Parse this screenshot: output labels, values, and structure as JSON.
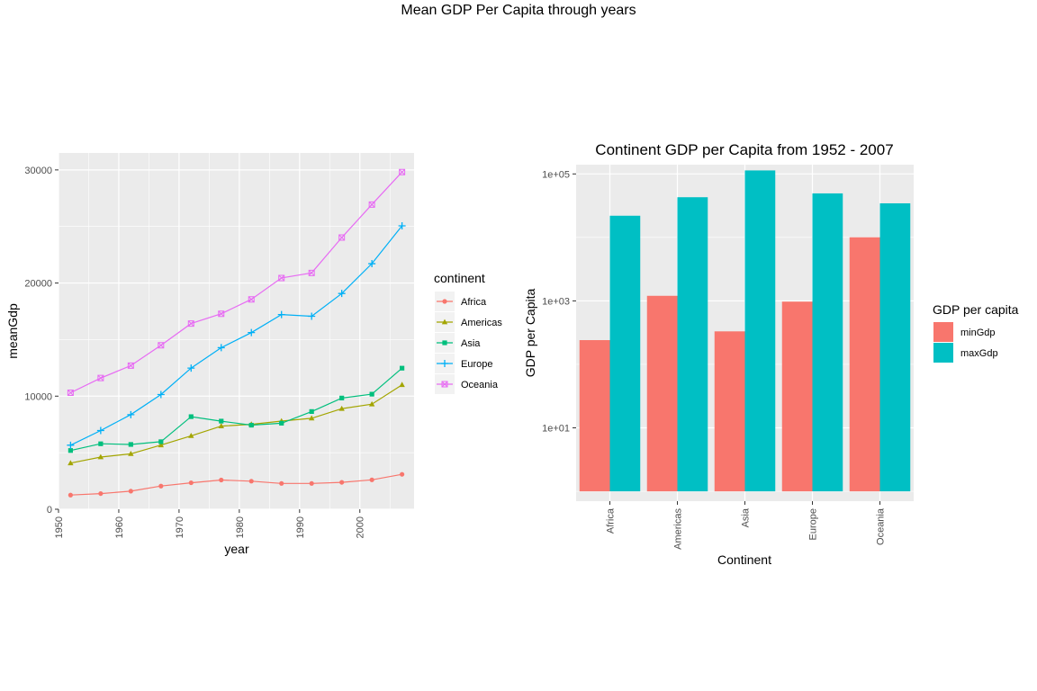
{
  "page": {
    "title": "Mean GDP Per Capita through years"
  },
  "colors": {
    "Africa": "#F8766D",
    "Americas": "#A3A500",
    "Asia": "#00BF7D",
    "Europe": "#00B0F6",
    "Oceania": "#E76BF3",
    "minGdp": "#F8766D",
    "maxGdp": "#00BFC4",
    "panel": "#EBEBEB",
    "grid": "#FFFFFF"
  },
  "chart_data": [
    {
      "type": "line",
      "title": "",
      "xlabel": "year",
      "ylabel": "meanGdp",
      "xlim": [
        1950,
        2009
      ],
      "ylim": [
        0,
        31500
      ],
      "x_ticks": [
        1950,
        1960,
        1970,
        1980,
        1990,
        2000
      ],
      "x_tick_labels": [
        "1950",
        "1960",
        "1970",
        "1980",
        "1990",
        "2000"
      ],
      "y_ticks": [
        0,
        10000,
        20000,
        30000
      ],
      "y_tick_labels": [
        "0",
        "10000",
        "20000",
        "30000"
      ],
      "grid": true,
      "legend": {
        "title": "continent",
        "position": "right"
      },
      "x": [
        1952,
        1957,
        1962,
        1967,
        1972,
        1977,
        1982,
        1987,
        1992,
        1997,
        2002,
        2007
      ],
      "series": [
        {
          "name": "Africa",
          "marker": "circle",
          "values": [
            1253,
            1385,
            1598,
            2050,
            2340,
            2586,
            2482,
            2283,
            2282,
            2379,
            2599,
            3089
          ]
        },
        {
          "name": "Americas",
          "marker": "triangle",
          "values": [
            4079,
            4616,
            4902,
            5668,
            6491,
            7352,
            7507,
            7793,
            8045,
            8890,
            9288,
            11003
          ]
        },
        {
          "name": "Asia",
          "marker": "square",
          "values": [
            5195,
            5788,
            5729,
            5971,
            8187,
            7791,
            7434,
            7608,
            8639,
            9834,
            10174,
            12473
          ]
        },
        {
          "name": "Europe",
          "marker": "plus",
          "values": [
            5661,
            6963,
            8365,
            10143,
            12480,
            14284,
            15618,
            17214,
            17062,
            19077,
            21712,
            25054
          ]
        },
        {
          "name": "Oceania",
          "marker": "boxcross",
          "values": [
            10298,
            11599,
            12696,
            14495,
            16417,
            17284,
            18555,
            20448,
            20894,
            24024,
            26939,
            29811
          ]
        }
      ]
    },
    {
      "type": "bar",
      "title": "Continent GDP per Capita from 1952 - 2007",
      "xlabel": "Continent",
      "ylabel": "GDP per Capita",
      "y_scale": "log10",
      "ylim": [
        0.7,
        140000
      ],
      "y_ticks": [
        10,
        1000,
        100000
      ],
      "y_tick_labels": [
        "1e+01",
        "1e+03",
        "1e+05"
      ],
      "grid": true,
      "legend": {
        "title": "GDP per capita",
        "position": "right"
      },
      "categories": [
        "Africa",
        "Americas",
        "Asia",
        "Europe",
        "Oceania"
      ],
      "bar_base": 1,
      "series": [
        {
          "name": "minGdp",
          "values": [
            241,
            1202,
            331,
            974,
            10040
          ]
        },
        {
          "name": "maxGdp",
          "values": [
            21951,
            42952,
            113523,
            49357,
            34435
          ]
        }
      ]
    }
  ]
}
